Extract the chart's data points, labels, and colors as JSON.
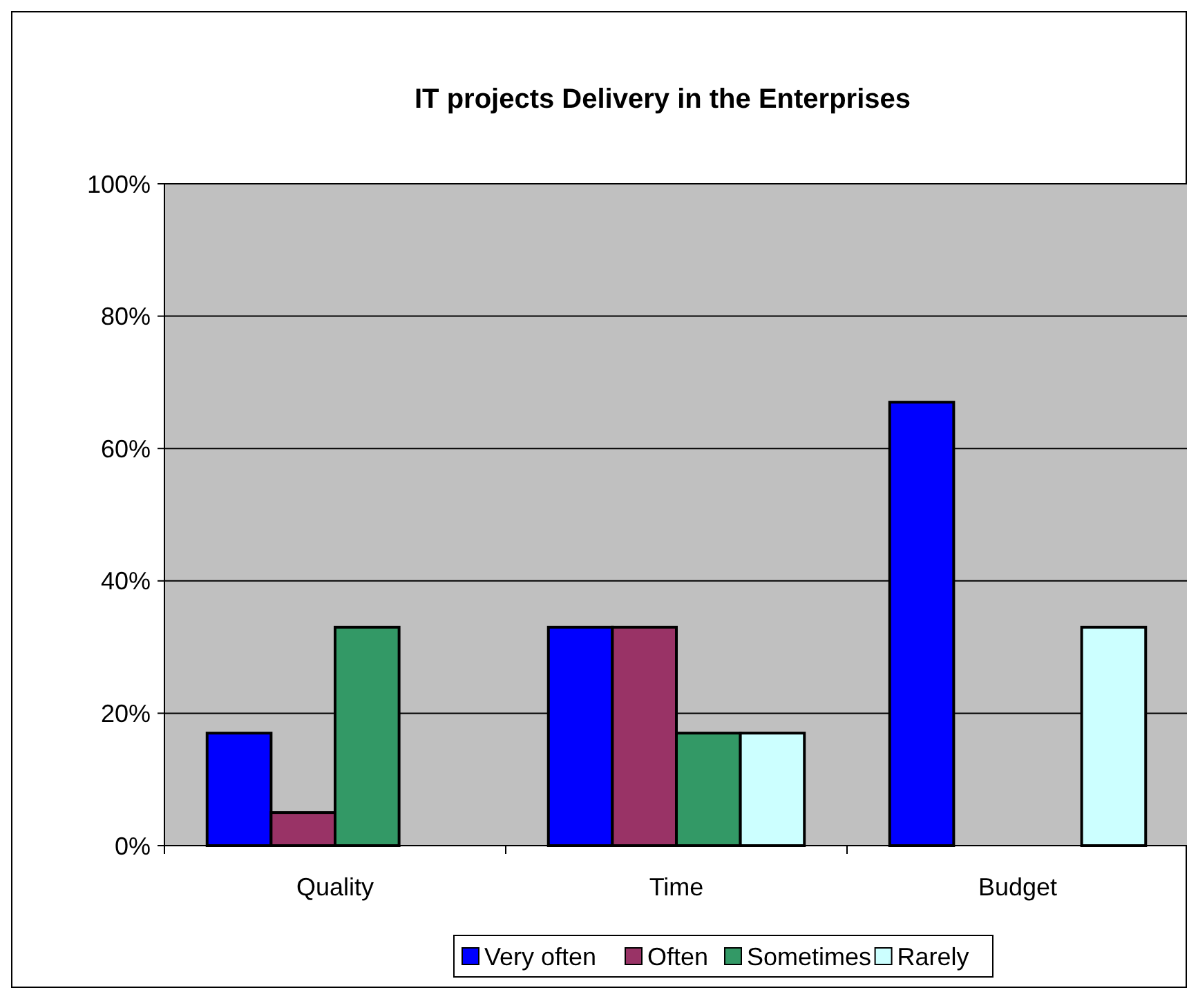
{
  "chart_data": {
    "type": "bar",
    "title": "IT projects Delivery in the Enterprises",
    "categories": [
      "Quality",
      "Time",
      "Budget"
    ],
    "series": [
      {
        "name": "Very often",
        "color": "#0000ff",
        "values": [
          17,
          33,
          67
        ]
      },
      {
        "name": "Often",
        "color": "#993366",
        "values": [
          5,
          33,
          0
        ]
      },
      {
        "name": "Sometimes",
        "color": "#339966",
        "values": [
          33,
          17,
          0
        ]
      },
      {
        "name": "Rarely",
        "color": "#ccffff",
        "values": [
          0,
          17,
          33
        ]
      }
    ],
    "ylim": [
      0,
      100
    ],
    "yticks": [
      {
        "value": 0,
        "label": "0%"
      },
      {
        "value": 20,
        "label": "20%"
      },
      {
        "value": 40,
        "label": "40%"
      },
      {
        "value": 60,
        "label": "60%"
      },
      {
        "value": 80,
        "label": "80%"
      },
      {
        "value": 100,
        "label": "100%"
      }
    ],
    "grid": "y",
    "legend": "bottom"
  }
}
